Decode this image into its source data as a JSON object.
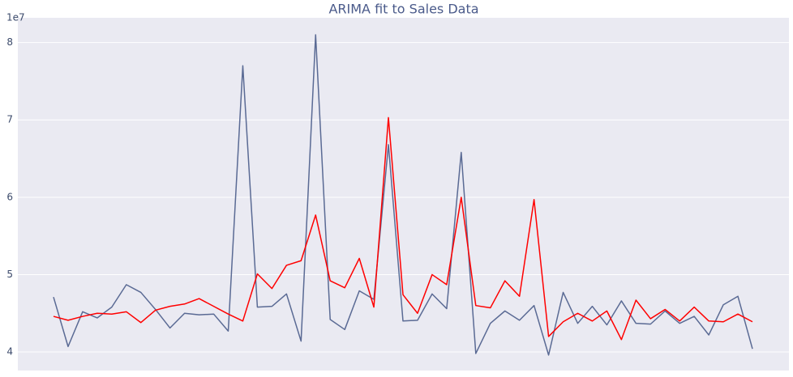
{
  "chart_data": {
    "type": "line",
    "title": "ARIMA fit to Sales Data",
    "y_offset_label": "1e7",
    "categories": [
      null,
      null,
      null,
      null,
      null,
      null,
      null,
      null,
      null,
      null,
      null,
      null,
      null,
      null,
      null,
      null,
      null,
      null,
      null,
      null,
      null,
      null,
      null,
      null,
      null,
      null,
      null,
      null,
      null,
      null,
      null,
      null,
      null,
      null,
      null,
      null,
      null,
      null,
      null,
      null,
      null,
      null,
      null,
      null,
      null,
      null,
      null,
      null,
      null
    ],
    "series": [
      {
        "color": "#5a6a94",
        "values": [
          4.71,
          4.07,
          4.52,
          4.44,
          4.58,
          4.87,
          4.77,
          4.55,
          4.31,
          4.5,
          4.48,
          4.49,
          4.27,
          7.7,
          4.58,
          4.59,
          4.75,
          4.14,
          8.1,
          4.42,
          4.29,
          4.79,
          4.68,
          6.68,
          4.4,
          4.41,
          4.75,
          4.56,
          6.58,
          3.98,
          4.37,
          4.53,
          4.41,
          4.6,
          3.96,
          4.77,
          4.37,
          4.59,
          4.35,
          4.66,
          4.37,
          4.36,
          4.53,
          4.37,
          4.46,
          4.22,
          4.61,
          4.72,
          4.04
        ]
      },
      {
        "color": "#ff0000",
        "values": [
          4.46,
          4.41,
          4.46,
          4.5,
          4.49,
          4.52,
          4.38,
          4.54,
          4.59,
          4.62,
          4.69,
          4.59,
          4.49,
          4.4,
          5.01,
          4.82,
          5.12,
          5.18,
          5.77,
          4.92,
          4.83,
          5.21,
          4.58,
          7.03,
          4.74,
          4.5,
          5.0,
          4.87,
          6.0,
          4.6,
          4.57,
          4.92,
          4.72,
          5.97,
          4.2,
          4.39,
          4.5,
          4.4,
          4.53,
          4.16,
          4.67,
          4.43,
          4.55,
          4.4,
          4.58,
          4.4,
          4.39,
          4.49,
          4.39
        ]
      }
    ],
    "ylim": [
      3.76,
      8.32
    ],
    "yticks": [
      4,
      5,
      6,
      7,
      8
    ],
    "grid": true,
    "background": "#eaeaf2"
  }
}
